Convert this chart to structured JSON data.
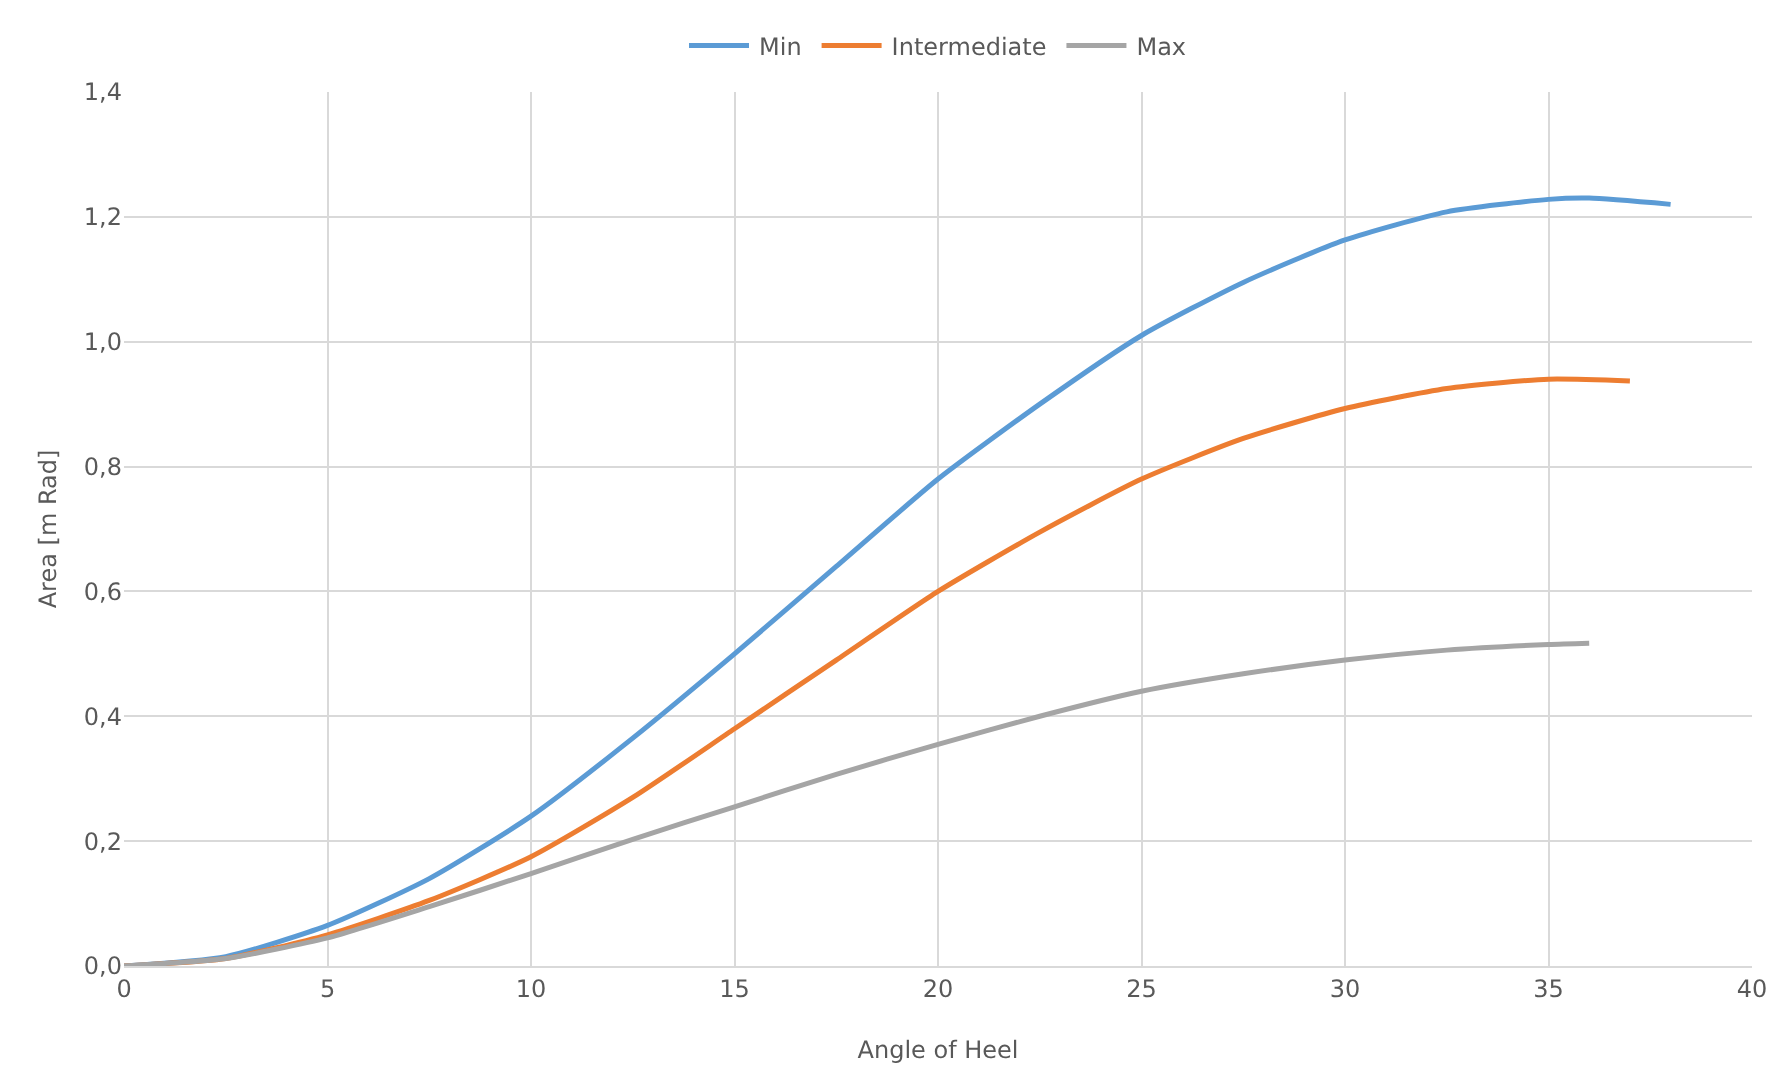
{
  "chart_data": {
    "type": "line",
    "xlabel": "Angle of Heel",
    "ylabel": "Area [m Rad]",
    "series": [
      {
        "name": "Min",
        "color": "#5b9bd5",
        "x": [
          0,
          2.5,
          5,
          7.5,
          10,
          12.5,
          15,
          17.5,
          20,
          22.5,
          25,
          27.5,
          30,
          32.5,
          35,
          36,
          38
        ],
        "values": [
          0,
          0.015,
          0.065,
          0.14,
          0.24,
          0.365,
          0.5,
          0.64,
          0.78,
          0.9,
          1.01,
          1.095,
          1.163,
          1.208,
          1.228,
          1.23,
          1.22
        ]
      },
      {
        "name": "Intermediate",
        "color": "#ed7d31",
        "x": [
          0,
          2.5,
          5,
          7.5,
          10,
          12.5,
          15,
          17.5,
          20,
          22.5,
          25,
          27.5,
          30,
          32.5,
          35,
          37
        ],
        "values": [
          0,
          0.012,
          0.05,
          0.105,
          0.175,
          0.27,
          0.38,
          0.49,
          0.6,
          0.695,
          0.78,
          0.845,
          0.893,
          0.925,
          0.94,
          0.937
        ]
      },
      {
        "name": "Max",
        "color": "#a5a5a5",
        "x": [
          0,
          2.5,
          5,
          7.5,
          10,
          12.5,
          15,
          17.5,
          20,
          22.5,
          25,
          27.5,
          30,
          32.5,
          35,
          36
        ],
        "values": [
          0,
          0.012,
          0.045,
          0.095,
          0.148,
          0.203,
          0.255,
          0.307,
          0.355,
          0.4,
          0.44,
          0.468,
          0.49,
          0.506,
          0.515,
          0.517
        ]
      }
    ],
    "xlim": [
      0,
      40
    ],
    "xticks": [
      0,
      5,
      10,
      15,
      20,
      25,
      30,
      35,
      40
    ],
    "ylim": [
      0,
      1.4
    ],
    "yticks": [
      {
        "value": 0,
        "label": "0,0"
      },
      {
        "value": 0.2,
        "label": "0,2"
      },
      {
        "value": 0.4,
        "label": "0,4"
      },
      {
        "value": 0.6,
        "label": "0,6"
      },
      {
        "value": 0.8,
        "label": "0,8"
      },
      {
        "value": 1,
        "label": "1,0"
      },
      {
        "value": 1.2,
        "label": "1,2"
      },
      {
        "value": 1.4,
        "label": "1,4"
      }
    ],
    "grid": true,
    "legend": "top",
    "marker": "none",
    "line_style": "solid"
  }
}
